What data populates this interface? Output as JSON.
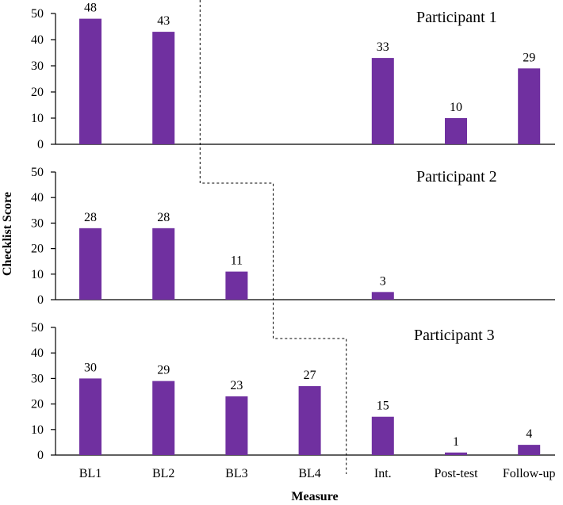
{
  "chart_data": {
    "type": "bar",
    "ylabel": "Checklist Score",
    "xlabel": "Measure",
    "categories": [
      "BL1",
      "BL2",
      "BL3",
      "BL4",
      "Int.",
      "Post-test",
      "Follow-up"
    ],
    "ylim": [
      0,
      50
    ],
    "yticks": [
      0,
      10,
      20,
      30,
      40,
      50
    ],
    "bar_color": "#7030A0",
    "phase_change_after": [
      2,
      3,
      4
    ],
    "series": [
      {
        "name": "Participant 1",
        "values": [
          48,
          43,
          null,
          null,
          33,
          10,
          29
        ]
      },
      {
        "name": "Participant 2",
        "values": [
          28,
          28,
          11,
          null,
          3,
          null,
          null
        ]
      },
      {
        "name": "Participant 3",
        "values": [
          30,
          29,
          23,
          27,
          15,
          1,
          4
        ]
      }
    ]
  }
}
